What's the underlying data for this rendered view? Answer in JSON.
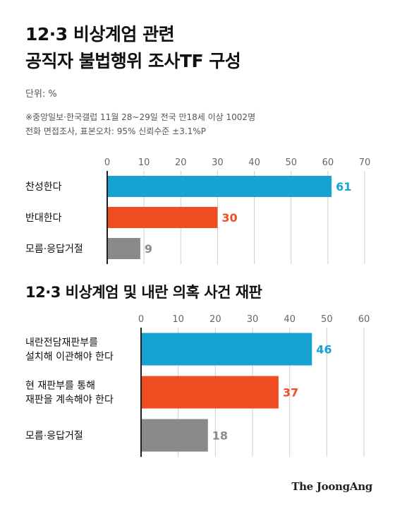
{
  "colors": {
    "approve": "#16a3d4",
    "oppose": "#f14d22",
    "neutral": "#8a8a8a",
    "grid": "#cfcfcf",
    "axis": "#222222"
  },
  "chart_title_1": "12·3 비상계엄 관련\n공직자 불법행위 조사TF 구성",
  "unit_label": "단위: %",
  "source_note": "※중앙일보·한국갤럽 11월 28~29일 전국 만18세 이상 1002명\n전화 면접조사, 표본오차: 95% 신뢰수준 ±3.1%P",
  "chart_title_2": "12·3 비상계엄 및 내란 의혹 사건 재판",
  "brand": "The JoongAng",
  "chart_data": [
    {
      "type": "bar",
      "orientation": "horizontal",
      "title": "12·3 비상계엄 관련 공직자 불법행위 조사TF 구성",
      "categories": [
        "찬성한다",
        "반대한다",
        "모름·응답거절"
      ],
      "values": [
        61,
        30,
        9
      ],
      "xlim": [
        0,
        70
      ],
      "ticks": [
        0,
        10,
        20,
        30,
        40,
        50,
        60,
        70
      ],
      "grid": true
    },
    {
      "type": "bar",
      "orientation": "horizontal",
      "title": "12·3 비상계엄 및 내란 의혹 사건 재판",
      "categories": [
        "내란전담재판부를\n설치해 이관해야 한다",
        "현 재판부를 통해\n재판을 계속해야 한다",
        "모름·응답거절"
      ],
      "values": [
        46,
        37,
        18
      ],
      "xlim": [
        0,
        60
      ],
      "ticks": [
        0,
        10,
        20,
        30,
        40,
        50,
        60
      ],
      "grid": true
    }
  ]
}
